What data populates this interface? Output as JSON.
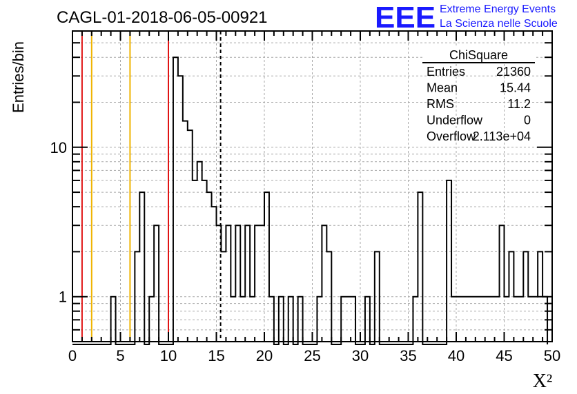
{
  "chart_data": {
    "type": "bar",
    "title": "CAGL-01-2018-06-05-00921",
    "xlabel": "X²",
    "ylabel": "Entries/bin",
    "xlim": [
      0,
      50
    ],
    "ylim": [
      0.5,
      60
    ],
    "y_scale": "log",
    "grid": true,
    "bin_width": 0.5,
    "x_ticks": [
      "0",
      "5",
      "10",
      "15",
      "20",
      "25",
      "30",
      "35",
      "40",
      "45",
      "50"
    ],
    "y_ticks": [
      "1",
      "10"
    ],
    "values": [
      0,
      0,
      0,
      0,
      0,
      0,
      0,
      0,
      1,
      0,
      0,
      0,
      0,
      2,
      5,
      0,
      1,
      3,
      0,
      0,
      0,
      40,
      30,
      15,
      13,
      6,
      8,
      6,
      5,
      4,
      3,
      2,
      3,
      1,
      3,
      1,
      3,
      1,
      3,
      3,
      5,
      1,
      0,
      1,
      0,
      1,
      0,
      1,
      0,
      0,
      0,
      1,
      3,
      2,
      0,
      0,
      1,
      1,
      1,
      0,
      0,
      1,
      0,
      2,
      0,
      0,
      0,
      0,
      0,
      0,
      0,
      1,
      5,
      0,
      0,
      0,
      0,
      0,
      6,
      1,
      1,
      1,
      1,
      1,
      1,
      1,
      1,
      1,
      1,
      3,
      1,
      2,
      1,
      1,
      2,
      1,
      1,
      2,
      1
    ],
    "reference_lines": [
      {
        "x": 1,
        "color": "#e01414",
        "style": "solid"
      },
      {
        "x": 2,
        "color": "#f0b400",
        "style": "solid"
      },
      {
        "x": 6,
        "color": "#f0b400",
        "style": "solid"
      },
      {
        "x": 10,
        "color": "#e01414",
        "style": "solid"
      },
      {
        "x": 15.44,
        "color": "#000000",
        "style": "dashed"
      }
    ],
    "stats_box": {
      "title": "ChiSquare",
      "rows": [
        {
          "label": "Entries",
          "value": "21360"
        },
        {
          "label": "Mean",
          "value": "15.44"
        },
        {
          "label": "RMS",
          "value": "11.2"
        },
        {
          "label": "Underflow",
          "value": "0"
        },
        {
          "label": "Overflow",
          "value": "2.113e+04"
        }
      ]
    }
  },
  "logo": {
    "mark": "EEE",
    "line1": "Extreme Energy Events",
    "line2": "La Scienza nelle Scuole",
    "color": "#1a1aff"
  }
}
